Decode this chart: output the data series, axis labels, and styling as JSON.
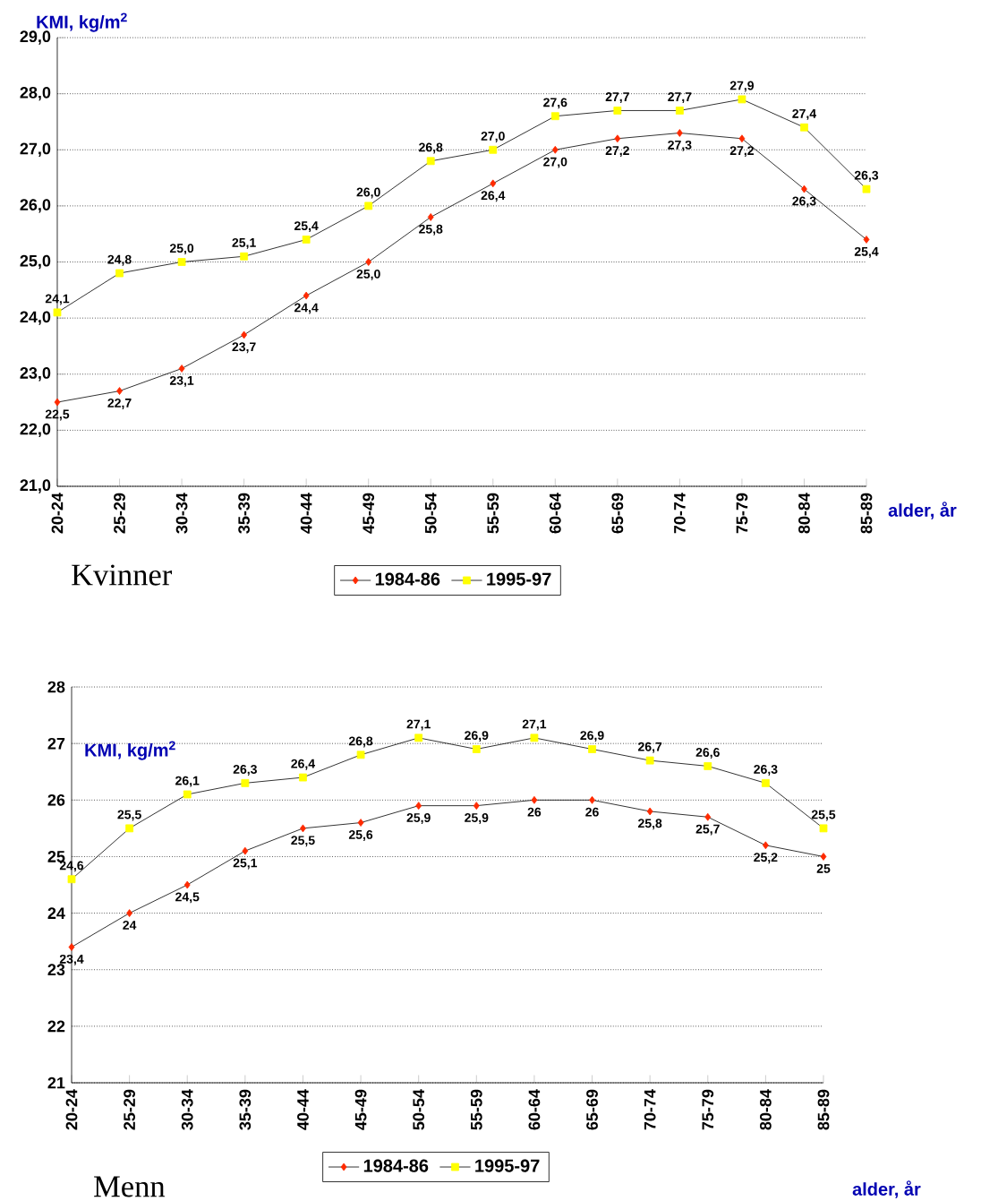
{
  "chart_data": [
    {
      "type": "line",
      "xlabel": "alder, år",
      "ylabel": "KMI, kg/m$^{2}$",
      "annotations": [
        "Kvinner"
      ],
      "categories": [
        "20-24",
        "25-29",
        "30-34",
        "35-39",
        "40-44",
        "45-49",
        "50-54",
        "55-59",
        "60-64",
        "65-69",
        "70-74",
        "75-79",
        "80-84",
        "85-89"
      ],
      "series": [
        {
          "name": "1984-86",
          "color": "#ff2a00",
          "marker": "diamond",
          "values": [
            22.5,
            22.7,
            23.1,
            23.7,
            24.4,
            25.0,
            25.8,
            26.4,
            27.0,
            27.2,
            27.3,
            27.2,
            26.3,
            25.4
          ],
          "value_labels": [
            "22,5",
            "22,7",
            "23,1",
            "23,7",
            "24,4",
            "25,0",
            "25,8",
            "26,4",
            "27,0",
            "27,2",
            "27,3",
            "27,2",
            "26,3",
            "25,4"
          ]
        },
        {
          "name": "1995-97",
          "color": "#ffff00",
          "marker": "square",
          "values": [
            24.1,
            24.8,
            25.0,
            25.1,
            25.4,
            26.0,
            26.8,
            27.0,
            27.6,
            27.7,
            27.7,
            27.9,
            27.4,
            26.3
          ],
          "value_labels": [
            "24,1",
            "24,8",
            "25,0",
            "25,1",
            "25,4",
            "26,0",
            "26,8",
            "27,0",
            "27,6",
            "27,7",
            "27,7",
            "27,9",
            "27,4",
            "26,3"
          ]
        }
      ],
      "ylim": [
        21,
        29
      ],
      "yticks": [
        {
          "value": 21,
          "label": "21,0"
        },
        {
          "value": 22,
          "label": "22,0"
        },
        {
          "value": 23,
          "label": "23,0"
        },
        {
          "value": 24,
          "label": "24,0"
        },
        {
          "value": 25,
          "label": "25,0"
        },
        {
          "value": 26,
          "label": "26,0"
        },
        {
          "value": 27,
          "label": "27,0"
        },
        {
          "value": 28,
          "label": "28,0"
        },
        {
          "value": 29,
          "label": "29,0"
        }
      ],
      "grid": "y",
      "legend": "bottom"
    },
    {
      "type": "line",
      "xlabel": "alder, år",
      "ylabel": "KMI, kg/m$^{2}$",
      "annotations": [
        "Menn"
      ],
      "categories": [
        "20-24",
        "25-29",
        "30-34",
        "35-39",
        "40-44",
        "45-49",
        "50-54",
        "55-59",
        "60-64",
        "65-69",
        "70-74",
        "75-79",
        "80-84",
        "85-89"
      ],
      "series": [
        {
          "name": "1984-86",
          "color": "#ff2a00",
          "marker": "diamond",
          "values": [
            23.4,
            24,
            24.5,
            25.1,
            25.5,
            25.6,
            25.9,
            25.9,
            26,
            26,
            25.8,
            25.7,
            25.2,
            25
          ],
          "value_labels": [
            "23,4",
            "24",
            "24,5",
            "25,1",
            "25,5",
            "25,6",
            "25,9",
            "25,9",
            "26",
            "26",
            "25,8",
            "25,7",
            "25,2",
            "25"
          ]
        },
        {
          "name": "1995-97",
          "color": "#ffff00",
          "marker": "square",
          "values": [
            24.6,
            25.5,
            26.1,
            26.3,
            26.4,
            26.8,
            27.1,
            26.9,
            27.1,
            26.9,
            26.7,
            26.6,
            26.3,
            25.5
          ],
          "value_labels": [
            "24,6",
            "25,5",
            "26,1",
            "26,3",
            "26,4",
            "26,8",
            "27,1",
            "26,9",
            "27,1",
            "26,9",
            "26,7",
            "26,6",
            "26,3",
            "25,5"
          ]
        }
      ],
      "ylim": [
        21,
        28
      ],
      "yticks": [
        21,
        22,
        23,
        24,
        25,
        26,
        27,
        28
      ],
      "grid": "y",
      "legend": "bottom"
    }
  ]
}
